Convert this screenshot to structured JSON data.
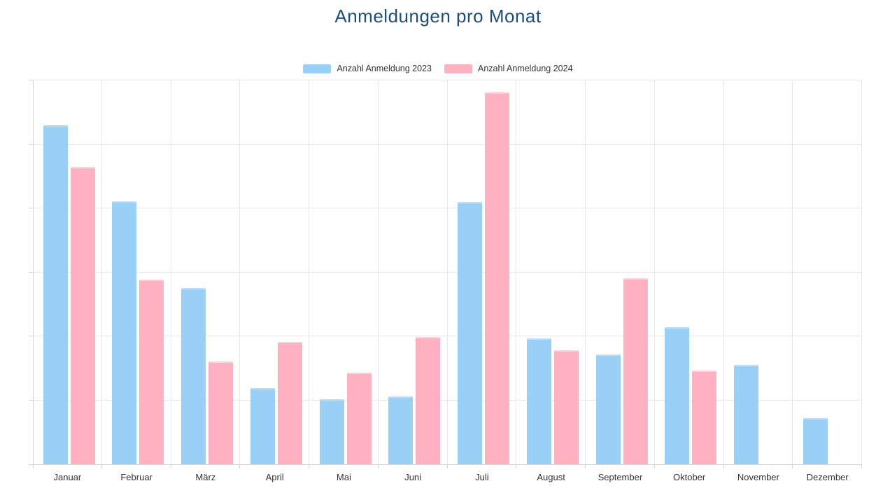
{
  "title": "Anmeldungen pro Monat",
  "legend": {
    "items": [
      {
        "label": "Anzahl Anmeldung 2023",
        "color": "#9AD0F5"
      },
      {
        "label": "Anzahl Anmeldung 2024",
        "color": "#FFB1C1"
      }
    ]
  },
  "chart_data": {
    "type": "bar",
    "title": "Anmeldungen pro Monat",
    "categories": [
      "Januar",
      "Februar",
      "März",
      "April",
      "Mai",
      "Juni",
      "Juli",
      "August",
      "September",
      "Oktober",
      "November",
      "Dezember"
    ],
    "series": [
      {
        "name": "Anzahl Anmeldung 2023",
        "color": "#9AD0F5",
        "edge_color": "#BFDDF8",
        "values": [
          530,
          411,
          275,
          119,
          102,
          106,
          410,
          197,
          172,
          214,
          155,
          72
        ]
      },
      {
        "name": "Anzahl Anmeldung 2024",
        "color": "#FFB1C1",
        "edge_color": "#FFCFDA",
        "values": [
          464,
          288,
          161,
          191,
          143,
          199,
          581,
          178,
          291,
          147,
          0,
          0
        ]
      }
    ],
    "xlabel": "",
    "ylabel": "",
    "ylim": [
      0,
      600
    ],
    "yticks": [
      0,
      100,
      200,
      300,
      400,
      500,
      600
    ],
    "grid": true,
    "legend_position": "top"
  },
  "colors": {
    "title_text": "#1E4E73",
    "grid": "#E7E7E7",
    "axis": "#D6D6D6",
    "tick_text": "#333333",
    "background": "#FFFFFF"
  }
}
